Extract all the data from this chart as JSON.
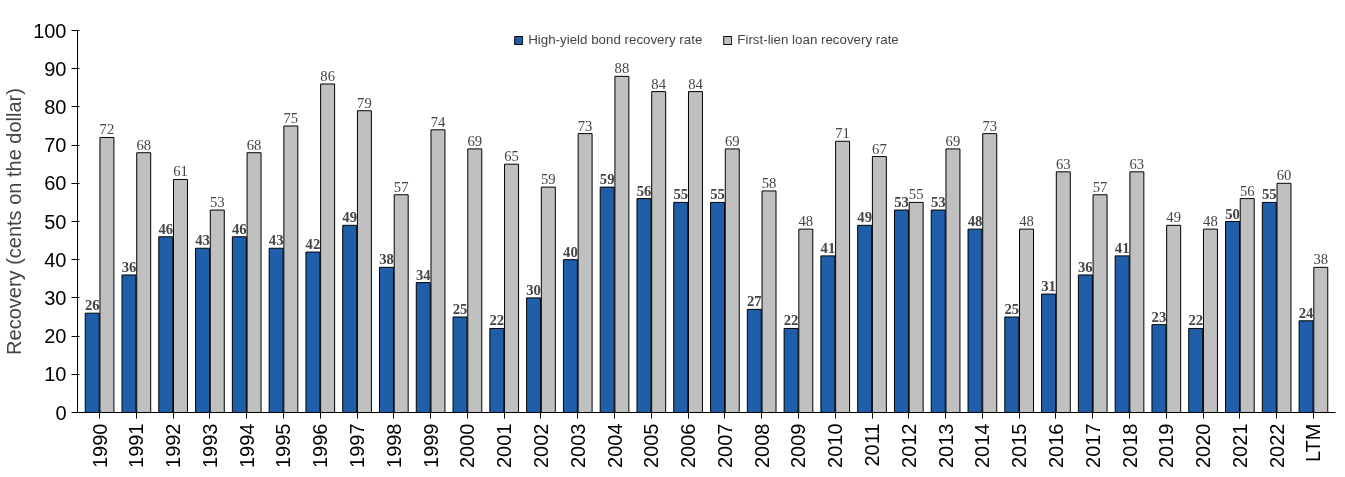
{
  "chart_data": {
    "type": "bar",
    "ylabel": "Recovery (cents on the dollar)",
    "categories": [
      "1990",
      "1991",
      "1992",
      "1993",
      "1994",
      "1995",
      "1996",
      "1997",
      "1998",
      "1999",
      "2000",
      "2001",
      "2002",
      "2003",
      "2004",
      "2005",
      "2006",
      "2007",
      "2008",
      "2009",
      "2010",
      "2011",
      "2012",
      "2013",
      "2014",
      "2015",
      "2016",
      "2017",
      "2018",
      "2019",
      "2020",
      "2021",
      "2022",
      "LTM"
    ],
    "series": [
      {
        "name": "High-yield bond recovery rate",
        "color": "#1f5ea8",
        "values": [
          26,
          36,
          46,
          43,
          46,
          43,
          42,
          49,
          38,
          34,
          25,
          22,
          30,
          40,
          59,
          56,
          55,
          55,
          27,
          22,
          41,
          49,
          53,
          53,
          48,
          25,
          31,
          36,
          41,
          23,
          22,
          50,
          55,
          24
        ]
      },
      {
        "name": "First-lien loan recovery rate",
        "color": "#c0c0c0",
        "values": [
          72,
          68,
          61,
          53,
          68,
          75,
          86,
          79,
          57,
          74,
          69,
          65,
          59,
          73,
          88,
          84,
          84,
          69,
          58,
          48,
          71,
          67,
          55,
          69,
          73,
          48,
          63,
          57,
          63,
          49,
          48,
          56,
          60,
          38
        ]
      }
    ],
    "ylim": [
      0,
      100
    ],
    "yticks": [
      0,
      10,
      20,
      30,
      40,
      50,
      60,
      70,
      80,
      90,
      100
    ],
    "grid": false,
    "legend": "top",
    "data_labels": true
  }
}
